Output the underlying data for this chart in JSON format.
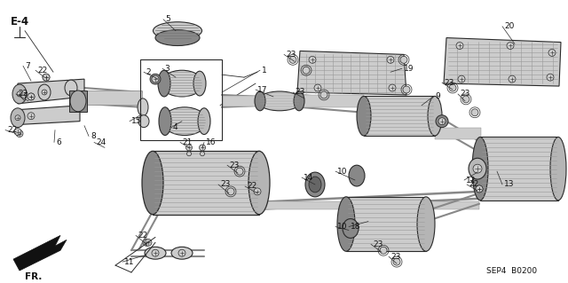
{
  "bg_color": "#ffffff",
  "line_color": "#2a2a2a",
  "text_color": "#111111",
  "fig_width": 6.4,
  "fig_height": 3.19,
  "dpi": 100,
  "watermark": "SEP4  B0200",
  "gray_part": "#b8b8b8",
  "gray_dark": "#888888",
  "gray_med": "#cccccc",
  "gray_light": "#e0e0e0"
}
